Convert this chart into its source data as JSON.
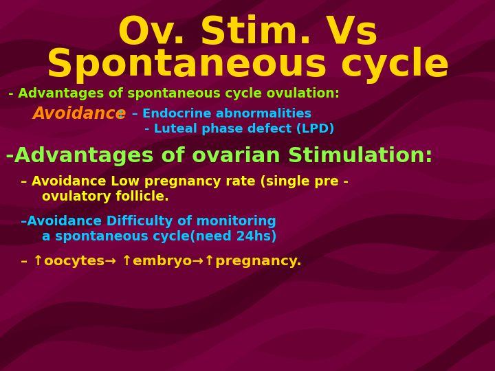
{
  "title_line1": "Ov. Stim. Vs",
  "title_line2": "Spontaneous cycle",
  "title_color": "#FFD700",
  "bg_color": "#6B0035",
  "line1": "- Advantages of spontaneous cycle ovulation:",
  "line1_color": "#88FF00",
  "avoidance_italic": "Avoidance",
  "avoidance_color": "#FF8C00",
  "avoidance_rest": ":  – Endocrine abnormalities",
  "avoidance_rest_color": "#00CCFF",
  "line3": "- Luteal phase defect (LPD)",
  "line3_color": "#00CCFF",
  "line4": "-Advantages of ovarian Stimulation:",
  "line4_color": "#88FF44",
  "line5": "– Avoidance Low pregnancy rate (single pre -",
  "line5b": "  ovulatory follicle.",
  "line5_color": "#FFFF00",
  "line6": "–Avoidance Difficulty of monitoring",
  "line6b": "  a spontaneous cycle(need 24hs)",
  "line6_color": "#00CCFF",
  "line7": "– ↑oocytes→ ↑embryo→↑pregnancy.",
  "line7_color": "#FFD700",
  "wave_dark": "#4A0020",
  "wave_mid": "#7A0040"
}
